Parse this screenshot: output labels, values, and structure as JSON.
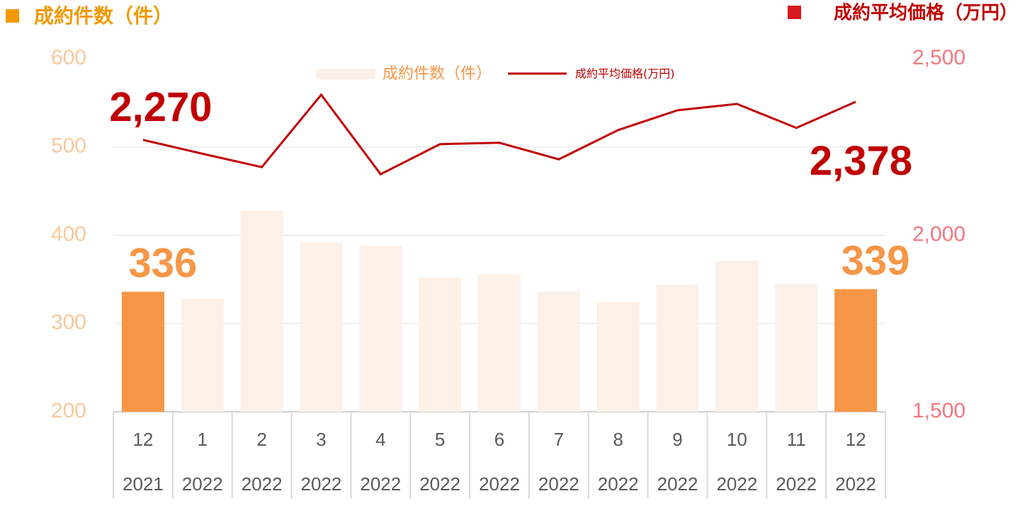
{
  "chart_data": {
    "type": "bar-line",
    "left_title": "成約件数（件）",
    "right_title": "成約平均価格（万円）",
    "left_title_color": "#f39800",
    "right_title_color": "#c00000",
    "right_marker_color": "#d7191c",
    "categories": [
      {
        "month": "12",
        "year": "2021"
      },
      {
        "month": "1",
        "year": "2022"
      },
      {
        "month": "2",
        "year": "2022"
      },
      {
        "month": "3",
        "year": "2022"
      },
      {
        "month": "4",
        "year": "2022"
      },
      {
        "month": "5",
        "year": "2022"
      },
      {
        "month": "6",
        "year": "2022"
      },
      {
        "month": "7",
        "year": "2022"
      },
      {
        "month": "8",
        "year": "2022"
      },
      {
        "month": "9",
        "year": "2022"
      },
      {
        "month": "10",
        "year": "2022"
      },
      {
        "month": "11",
        "year": "2022"
      },
      {
        "month": "12",
        "year": "2022"
      }
    ],
    "series": [
      {
        "name": "成約件数（件）",
        "type": "bar",
        "color": "#fdf0e6",
        "highlight_color": "#f79646",
        "highlighted": [
          0,
          12
        ],
        "labeled": [
          0,
          12
        ],
        "values": [
          336,
          328,
          428,
          392,
          388,
          352,
          356,
          336,
          324,
          344,
          371,
          345,
          339
        ]
      },
      {
        "name": "成約平均価格(万円)",
        "type": "line",
        "axis": "y2",
        "color": "#c00000",
        "values": [
          2270,
          2231,
          2193,
          2398,
          2173,
          2258,
          2262,
          2215,
          2298,
          2354,
          2372,
          2304,
          2378
        ],
        "value_labels": [
          "2,270",
          null,
          null,
          null,
          null,
          null,
          null,
          null,
          null,
          null,
          null,
          null,
          "2,378"
        ]
      }
    ],
    "ylim": [
      200,
      600
    ],
    "yticks": [
      200,
      300,
      400,
      500,
      600
    ],
    "y2lim": [
      1500,
      2500
    ],
    "y2ticks": [
      {
        "value": 1500,
        "label": "1,500"
      },
      {
        "value": 2000,
        "label": "2,000"
      },
      {
        "value": 2500,
        "label": "2,500"
      }
    ],
    "grid": true
  }
}
